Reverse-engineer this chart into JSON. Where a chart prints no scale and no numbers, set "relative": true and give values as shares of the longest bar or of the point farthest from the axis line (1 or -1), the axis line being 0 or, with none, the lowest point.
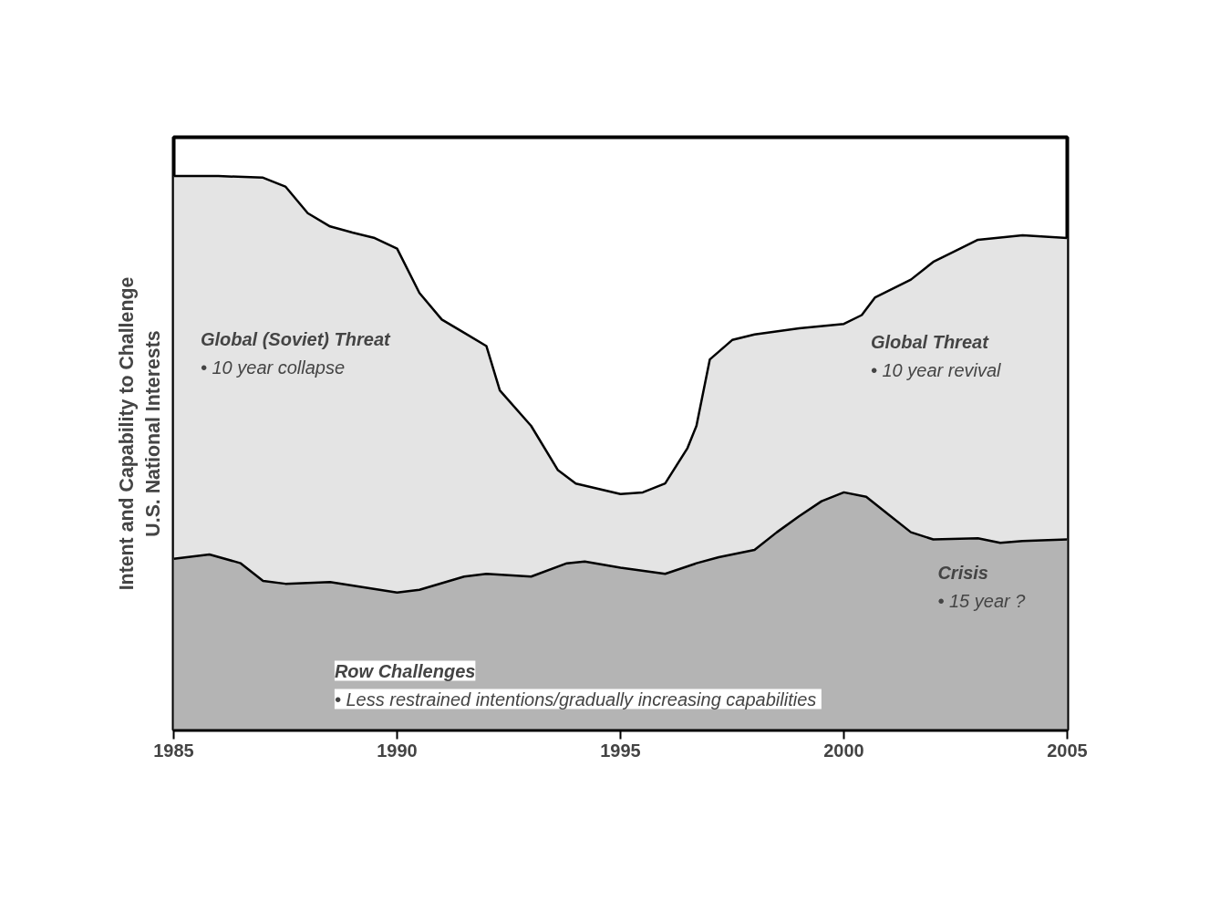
{
  "chart_data": {
    "type": "area",
    "relative": true,
    "ylabel": "Intent and Capability to Challenge\nU.S. National Interests",
    "xlim": [
      1985,
      2005
    ],
    "xticks": [
      1985,
      1990,
      1995,
      2000,
      2005
    ],
    "grid": false,
    "series": [
      {
        "color": "#e4e4e4",
        "x": [
          1985,
          1986,
          1987,
          1987.5,
          1988,
          1988.5,
          1989,
          1989.5,
          1990,
          1990.5,
          1991,
          1991.5,
          1992,
          1992.3,
          1993,
          1993.6,
          1994,
          1995,
          1995.5,
          1996,
          1996.5,
          1996.7,
          1997,
          1997.5,
          1998,
          1999,
          2000,
          2000.4,
          2000.7,
          2001.5,
          2002,
          2002.6,
          2003,
          2004,
          2005
        ],
        "values": [
          1.0,
          1.0,
          0.997,
          0.981,
          0.933,
          0.909,
          0.898,
          0.888,
          0.869,
          0.789,
          0.741,
          0.717,
          0.693,
          0.613,
          0.549,
          0.469,
          0.445,
          0.426,
          0.429,
          0.445,
          0.509,
          0.549,
          0.669,
          0.704,
          0.714,
          0.725,
          0.733,
          0.749,
          0.781,
          0.813,
          0.845,
          0.869,
          0.885,
          0.893,
          0.888
        ]
      },
      {
        "color": "#b4b4b4",
        "x": [
          1985,
          1985.8,
          1986.5,
          1987,
          1987.5,
          1988.5,
          1990,
          1990.5,
          1991.5,
          1992,
          1993,
          1993.8,
          1994.2,
          1995,
          1996,
          1996.7,
          1997.2,
          1998,
          1998.5,
          1999,
          1999.5,
          2000,
          2000.5,
          2001,
          2001.5,
          2002,
          2003,
          2003.5,
          2004,
          2005
        ],
        "values": [
          0.309,
          0.317,
          0.301,
          0.269,
          0.264,
          0.267,
          0.248,
          0.253,
          0.277,
          0.282,
          0.277,
          0.301,
          0.304,
          0.293,
          0.282,
          0.301,
          0.312,
          0.325,
          0.357,
          0.386,
          0.413,
          0.429,
          0.421,
          0.389,
          0.357,
          0.344,
          0.346,
          0.338,
          0.341,
          0.344
        ]
      }
    ],
    "annotations": [
      "Global (Soviet) Threat\n•  10 year collapse",
      "Global Threat\n•  10 year revival",
      "Crisis\n•  15 year ?",
      "Row Challenges\n•  Less restrained intentions/gradually increasing capabilities"
    ]
  }
}
